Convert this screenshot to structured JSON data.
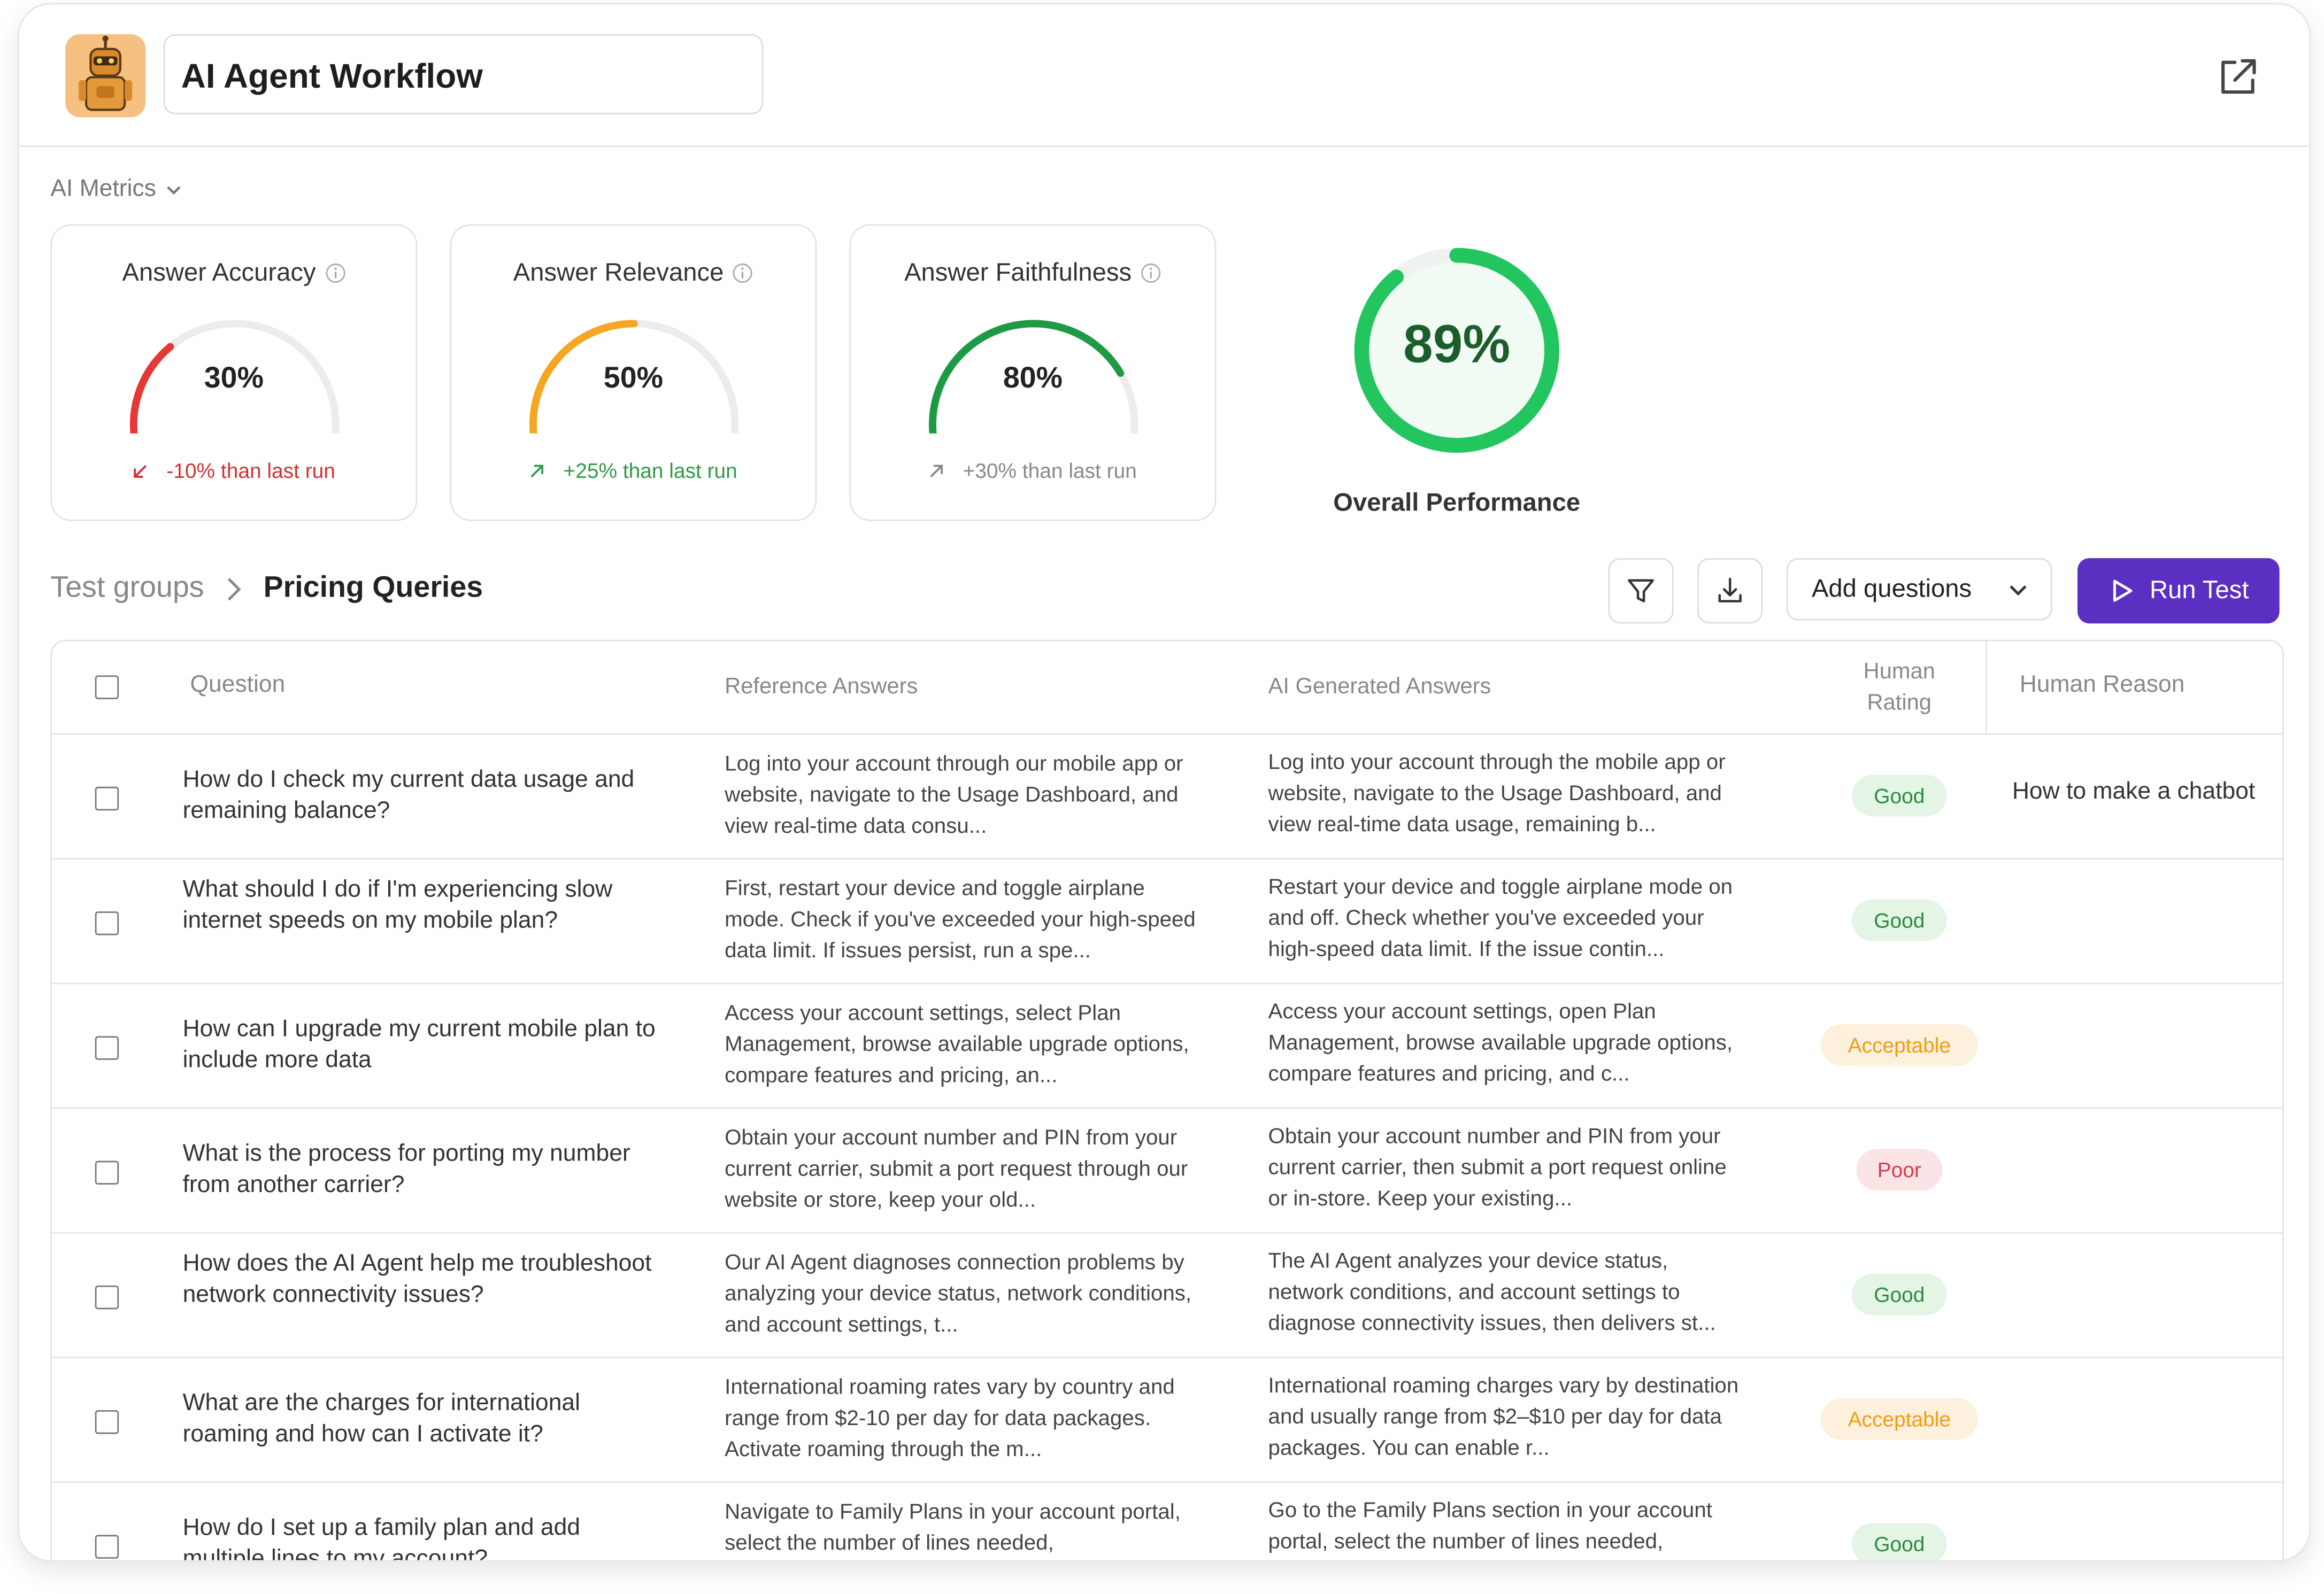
{
  "app": {
    "title": "AI Agent Workflow"
  },
  "metrics": {
    "section_label": "AI Metrics",
    "cards": [
      {
        "title": "Answer Accuracy",
        "value_text": "30%",
        "value": 0.3,
        "delta": "-10% than last run",
        "color": "#e53935",
        "delta_color": "#d32f2f",
        "trend": "down"
      },
      {
        "title": "Answer Relevance",
        "value_text": "50%",
        "value": 0.5,
        "delta": "+25% than last run",
        "color": "#f5a623",
        "delta_color": "#2e9a47",
        "trend": "up"
      },
      {
        "title": "Answer Faithfulness",
        "value_text": "80%",
        "value": 0.8,
        "delta": "+30% than last run",
        "color": "#1e9a45",
        "delta_color": "#888888",
        "trend": "up"
      }
    ],
    "overall": {
      "value_text": "89%",
      "value": 0.89,
      "label": "Overall Performance",
      "color": "#22c55e"
    }
  },
  "breadcrumb": {
    "parent": "Test groups",
    "current": "Pricing Queries"
  },
  "toolbar": {
    "add_questions": "Add questions",
    "run_test": "Run Test",
    "filter_icon": "filter-icon",
    "download_icon": "download-icon"
  },
  "table": {
    "headers": {
      "question": "Question",
      "reference": "Reference Answers",
      "ai": "AI Generated Answers",
      "rating_line1": "Human",
      "rating_line2": "Rating",
      "reason": "Human Reason"
    },
    "rows": [
      {
        "question": "How do I check my current data usage and remaining balance?",
        "reference": "Log into your account through our mobile app or website, navigate to the Usage Dashboard, and view real-time data consu...",
        "ai": "Log into your account through the mobile app or website, navigate to the Usage Dashboard, and view real-time data usage, remaining b...",
        "rating": "Good",
        "reason": "How to make a chatbot"
      },
      {
        "question": "What should I do if I'm experiencing slow internet speeds on my mobile plan?",
        "reference": "First, restart your device and toggle airplane mode. Check if you've exceeded your high-speed data limit. If issues persist, run a spe...",
        "ai": "Restart your device and toggle airplane mode on and off. Check whether you've exceeded your high-speed data limit. If the issue contin...",
        "rating": "Good",
        "reason": ""
      },
      {
        "question": "How can I upgrade my current mobile plan to include more data",
        "reference": "Access your account settings, select Plan Management, browse available upgrade options, compare features and pricing, an...",
        "ai": "Access your account settings, open Plan Management, browse available upgrade options, compare features and pricing, and c...",
        "rating": "Acceptable",
        "reason": ""
      },
      {
        "question": "What is the process for porting my number from another carrier?",
        "reference": "Obtain your account number and PIN from your current carrier, submit a port request through our website or store, keep your old...",
        "ai": "Obtain your account number and PIN from your current carrier, then submit a port request online or in-store. Keep your existing...",
        "rating": "Poor",
        "reason": ""
      },
      {
        "question": "How does the AI Agent help me troubleshoot network connectivity issues?",
        "reference": "Our AI Agent diagnoses connection problems by analyzing your device status, network conditions, and account settings, t...",
        "ai": "The AI Agent analyzes your device status, network conditions, and account settings to diagnose connectivity issues, then delivers st...",
        "rating": "Good",
        "reason": ""
      },
      {
        "question": "What are the charges for international roaming and how can I activate it?",
        "reference": "International roaming rates vary by country and range from $2-10 per day for data packages. Activate roaming through the m...",
        "ai": "International roaming charges vary by destination and usually range from $2–$10 per day for data packages. You can enable r...",
        "rating": "Acceptable",
        "reason": ""
      },
      {
        "question": "How do I set up a family plan and add multiple lines to my account?",
        "reference": "Navigate to Family Plans in your account portal, select the number of lines needed,",
        "ai": "Go to the Family Plans section in your account portal, select the number of lines needed,",
        "rating": "Good",
        "reason": ""
      }
    ]
  }
}
